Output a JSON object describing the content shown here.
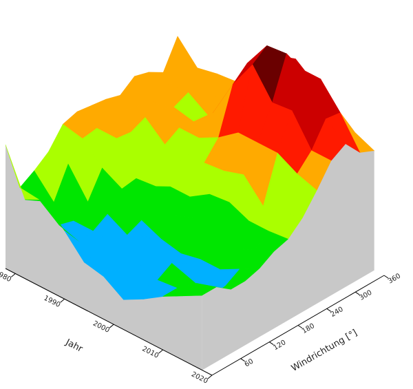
{
  "chart_data": {
    "type": "surface",
    "title": "",
    "xlabel": "Jahr",
    "ylabel": "Windrichtung [°]",
    "x_ticks": [
      "1980",
      "1990",
      "2000",
      "2010",
      "2020"
    ],
    "y_ticks": [
      "60",
      "120",
      "180",
      "240",
      "300",
      "360"
    ],
    "xlim": [
      1978,
      2020
    ],
    "ylim": [
      0,
      360
    ],
    "zlim": [
      0,
      10
    ],
    "colormap": [
      "#5522dd",
      "#00b0ff",
      "#00e600",
      "#aaff00",
      "#ffaa00",
      "#ff1a00",
      "#cc0000",
      "#6a0000"
    ],
    "grid": [
      {
        "year": 1978,
        "values": [
          5.8,
          3.4,
          3.8,
          4.3,
          5.2,
          5.4,
          5.3,
          5.2,
          5.0,
          5.5,
          5.3,
          4.9,
          6.2
        ]
      },
      {
        "year": 1982,
        "values": [
          3.7,
          3.3,
          2.8,
          4.2,
          5.0,
          5.1,
          5.1,
          5.2,
          5.0,
          4.7,
          5.2,
          5.0,
          5.2
        ]
      },
      {
        "year": 1986,
        "values": [
          4.1,
          2.6,
          2.4,
          2.9,
          4.1,
          5.1,
          5.0,
          5.3,
          5.3,
          5.0,
          5.3,
          5.3,
          5.4
        ]
      },
      {
        "year": 1990,
        "values": [
          3.2,
          2.3,
          2.4,
          2.8,
          3.6,
          3.7,
          4.5,
          4.5,
          4.9,
          4.8,
          4.7,
          4.9,
          5.5
        ]
      },
      {
        "year": 1994,
        "values": [
          2.2,
          1.5,
          2.3,
          2.3,
          2.6,
          3.8,
          3.4,
          4.6,
          4.9,
          5.7,
          5.5,
          5.9,
          5.7
        ]
      },
      {
        "year": 1998,
        "values": [
          2.0,
          1.9,
          2.1,
          2.7,
          2.2,
          2.9,
          3.4,
          4.6,
          5.4,
          7.5,
          8.1,
          8.0,
          7.2
        ]
      },
      {
        "year": 2002,
        "values": [
          1.4,
          1.4,
          1.7,
          2.5,
          2.0,
          3.3,
          4.0,
          4.7,
          6.1,
          8.9,
          9.4,
          8.5,
          8.0
        ]
      },
      {
        "year": 2006,
        "values": [
          1.9,
          2.4,
          2.8,
          2.4,
          2.2,
          3.0,
          4.1,
          5.0,
          6.1,
          7.6,
          9.5,
          8.4,
          7.3
        ]
      },
      {
        "year": 2010,
        "values": [
          2.5,
          2.5,
          2.5,
          2.2,
          2.2,
          2.8,
          3.7,
          4.0,
          6.1,
          7.7,
          8.6,
          8.4,
          6.7
        ]
      },
      {
        "year": 2014,
        "values": [
          3.0,
          3.2,
          2.2,
          2.3,
          2.7,
          3.2,
          3.7,
          4.2,
          5.6,
          6.3,
          7.4,
          7.3,
          6.0
        ]
      },
      {
        "year": 2018,
        "values": [
          3.5,
          3.5,
          3.0,
          3.0,
          3.2,
          3.6,
          3.8,
          4.4,
          5.3,
          6.3,
          6.7,
          5.9,
          5.6
        ]
      }
    ],
    "angles": [
      0,
      30,
      60,
      90,
      120,
      150,
      180,
      210,
      240,
      270,
      300,
      330,
      360
    ]
  }
}
